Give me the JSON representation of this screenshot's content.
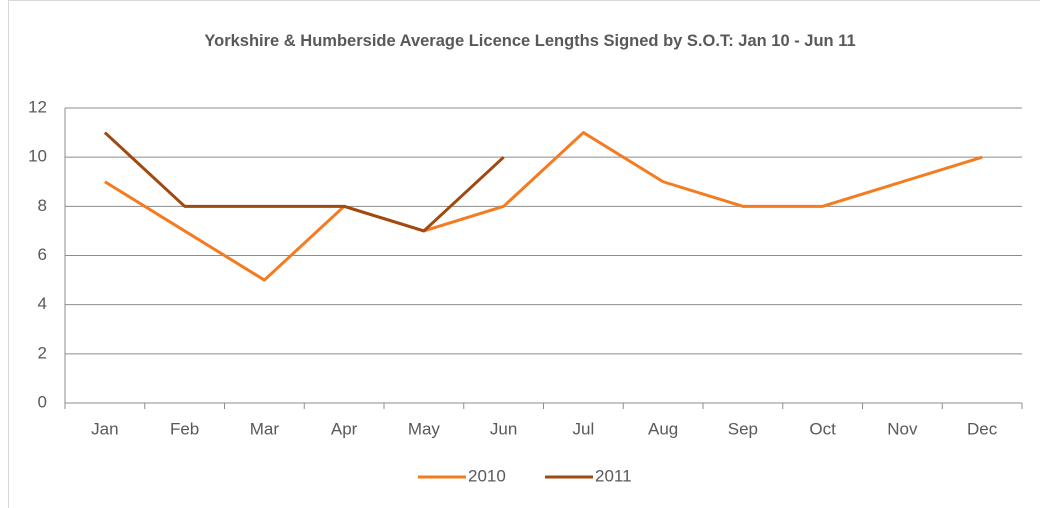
{
  "chart_data": {
    "type": "line",
    "title": "Yorkshire & Humberside Average Licence Lengths Signed by S.O.T: Jan 10 - Jun 11",
    "categories": [
      "Jan",
      "Feb",
      "Mar",
      "Apr",
      "May",
      "Jun",
      "Jul",
      "Aug",
      "Sep",
      "Oct",
      "Nov",
      "Dec"
    ],
    "series": [
      {
        "name": "2010",
        "color": "#f47b20",
        "values": [
          9,
          7,
          5,
          8,
          7,
          8,
          11,
          9,
          8,
          8,
          9,
          10
        ]
      },
      {
        "name": "2011",
        "color": "#9e4a10",
        "values": [
          11,
          8,
          8,
          8,
          7,
          10,
          null,
          null,
          null,
          null,
          null,
          null
        ]
      }
    ],
    "ylim": [
      0,
      12
    ],
    "yticks": [
      0,
      2,
      4,
      6,
      8,
      10,
      12
    ],
    "grid": true,
    "legend": "bottom"
  }
}
